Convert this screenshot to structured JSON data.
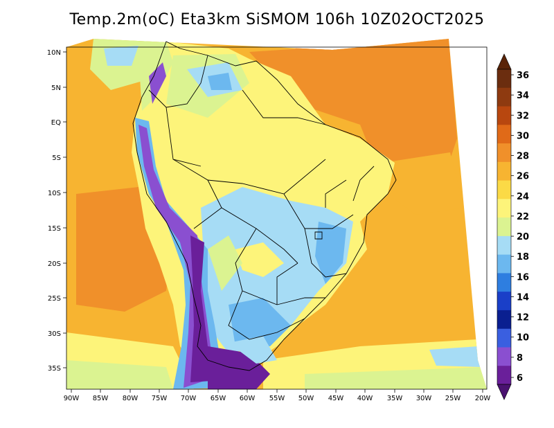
{
  "title": "Temp.2m(oC) Eta3km SiSMOM 106h 10Z02OCT2025",
  "axes": {
    "lat_labels": [
      "10N",
      "5N",
      "EQ",
      "5S",
      "10S",
      "15S",
      "20S",
      "25S",
      "30S",
      "35S"
    ],
    "lon_labels": [
      "90W",
      "85W",
      "80W",
      "75W",
      "70W",
      "65W",
      "60W",
      "55W",
      "50W",
      "45W",
      "40W",
      "35W",
      "30W",
      "25W",
      "20W"
    ]
  },
  "colorbar": {
    "labels": [
      "36",
      "34",
      "32",
      "30",
      "28",
      "26",
      "24",
      "22",
      "20",
      "18",
      "16",
      "14",
      "12",
      "10",
      "8",
      "6"
    ],
    "colors": [
      "#f2f2e0",
      "#6b2d0f",
      "#8e3a10",
      "#b8470f",
      "#e06a18",
      "#f0902a",
      "#f7b431",
      "#fbda46",
      "#fdf47a",
      "#dbf391",
      "#a6dcf5",
      "#6cb8ef",
      "#2e7ee0",
      "#1a3fc8",
      "#0a1f90",
      "#3a5fe0",
      "#8a4fd0",
      "#a63db8",
      "#6a1f9a",
      "#4a1270"
    ]
  },
  "regions": [
    {
      "name": "ocean-warm",
      "color": "#f7b431"
    },
    {
      "name": "ocean-hot",
      "color": "#f0902a"
    },
    {
      "name": "continent-mild",
      "color": "#fdf47a"
    },
    {
      "name": "andes-cold",
      "color": "#6a1f9a"
    },
    {
      "name": "highlands-cool",
      "color": "#6cb8ef"
    }
  ]
}
